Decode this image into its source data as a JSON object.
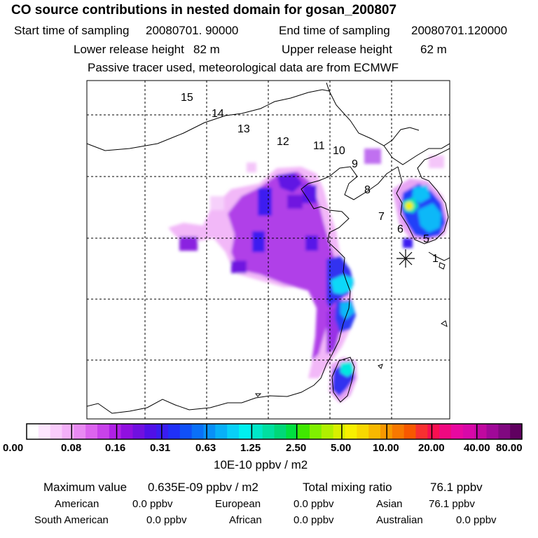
{
  "header": {
    "title": "CO  source contributions in nested domain for gosan_200807",
    "start_label": "Start time of sampling",
    "start_value": "20080701. 90000",
    "end_label": "End time of sampling",
    "end_value": "20080701.120000",
    "lower_label": "Lower release height",
    "lower_value": "82 m",
    "upper_label": "Upper release height",
    "upper_value": "62 m",
    "note": "Passive tracer used, meteorological data are from ECMWF"
  },
  "map": {
    "region_labels": [
      "15",
      "14",
      "13",
      "12",
      "11",
      "10",
      "9",
      "8",
      "7",
      "6",
      "5",
      "1"
    ],
    "receptor": "gosan"
  },
  "colorbar": {
    "ticks": [
      "0.00",
      "0.08",
      "0.16",
      "0.31",
      "0.63",
      "1.25",
      "2.50",
      "5.00",
      "10.00",
      "20.00",
      "40.00",
      "80.00"
    ],
    "units": "10E-10 ppbv / m2",
    "colors": [
      "#ffffff",
      "#fde6fe",
      "#f9ccfb",
      "#f3b0f8",
      "#e98af3",
      "#dc64ee",
      "#c842ea",
      "#b020e6",
      "#9010e0",
      "#7010e0",
      "#5010e8",
      "#3a1cf0",
      "#2030f8",
      "#1050f8",
      "#0a70f8",
      "#0890f8",
      "#08b0f8",
      "#08d0f8",
      "#00f0f0",
      "#00e8c8",
      "#00e0a0",
      "#00d878",
      "#00e040",
      "#40e800",
      "#80f000",
      "#b0f000",
      "#d8f000",
      "#f8f000",
      "#f8d800",
      "#f8b800",
      "#f89800",
      "#f87800",
      "#f85800",
      "#f83030",
      "#f81050",
      "#f00880",
      "#e808a0",
      "#d808a8",
      "#c008a0",
      "#a00898",
      "#800880",
      "#600060"
    ]
  },
  "stats": {
    "max_label": "Maximum value",
    "max_value": "0.635E-09 ppbv / m2",
    "total_label": "Total mixing ratio",
    "total_value": "76.1 ppbv",
    "regions": [
      {
        "name": "American",
        "value": "0.0 ppbv"
      },
      {
        "name": "European",
        "value": "0.0 ppbv"
      },
      {
        "name": "Asian",
        "value": "76.1 ppbv"
      },
      {
        "name": "South American",
        "value": "0.0 ppbv"
      },
      {
        "name": "African",
        "value": "0.0 ppbv"
      },
      {
        "name": "Australian",
        "value": "0.0 ppbv"
      }
    ]
  }
}
